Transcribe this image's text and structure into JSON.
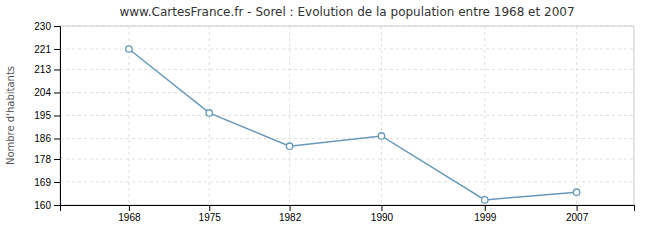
{
  "chart_data": {
    "type": "line",
    "title": "www.CartesFrance.fr - Sorel : Evolution de la population entre 1968 et 2007",
    "ylabel": "Nombre d'habitants",
    "x": [
      1968,
      1975,
      1982,
      1990,
      1999,
      2007
    ],
    "values": [
      221,
      196,
      183,
      187,
      162,
      165
    ],
    "xlim": [
      1962,
      2012
    ],
    "xticks": [
      1968,
      1975,
      1982,
      1990,
      1999,
      2007
    ],
    "ylim": [
      160,
      230
    ],
    "yticks": [
      160,
      169,
      178,
      186,
      195,
      204,
      213,
      221,
      230
    ],
    "grid": true,
    "color": "#6699bb",
    "marker": "circle"
  }
}
